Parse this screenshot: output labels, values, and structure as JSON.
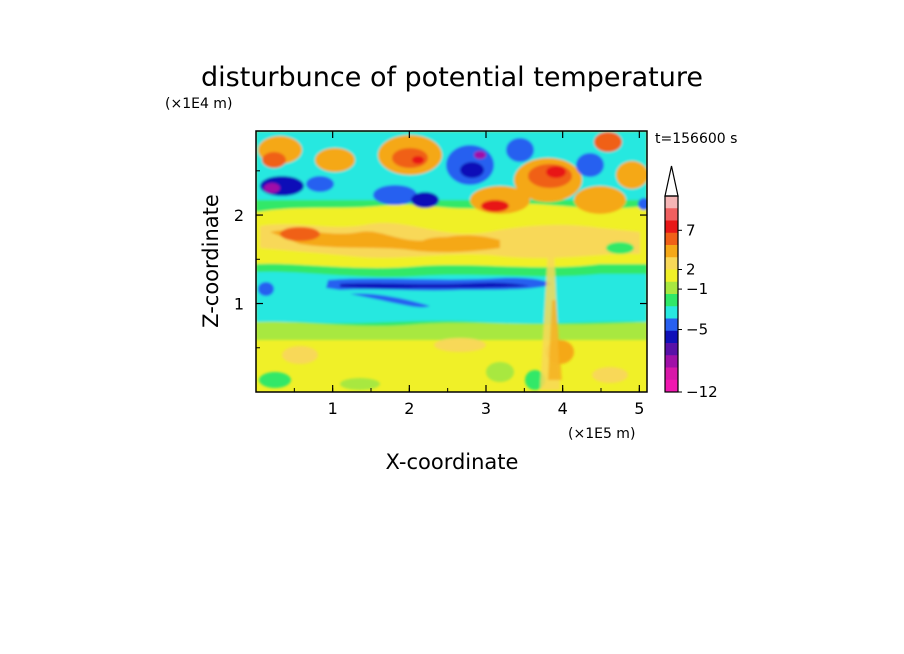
{
  "chart_data": {
    "type": "heatmap",
    "title": "disturbunce of potential temperature",
    "xlabel": "X-coordinate",
    "ylabel": "Z-coordinate",
    "x_unit": "(×1E5 m)",
    "y_unit": "(×1E4 m)",
    "time_label": "t=156600 s",
    "x_ticks": [
      "1",
      "2",
      "3",
      "4",
      "5"
    ],
    "y_ticks": [
      "1",
      "2"
    ],
    "xlim": [
      0,
      5.1
    ],
    "ylim": [
      0,
      2.95
    ],
    "colorbar_labels": [
      "7",
      "2",
      "−1",
      "−5",
      "−12"
    ],
    "colorbar_colors": [
      "#f5b5b5",
      "#f06060",
      "#e81818",
      "#f06018",
      "#f5a818",
      "#f8d858",
      "#f0f028",
      "#a8e840",
      "#30e868",
      "#28e8e0",
      "#2860f0",
      "#1010b8",
      "#5810a8",
      "#a010a8",
      "#d818a8",
      "#f018b0"
    ],
    "series_summary": [
      {
        "z_range": [
          0,
          0.8
        ],
        "character": "mostly yellow/orange with green patches (+1 to +3)"
      },
      {
        "z_range": [
          0.8,
          1.5
        ],
        "character": "cyan band (-1 to -3) with thin dark blue layer near z=1.2"
      },
      {
        "z_range": [
          1.5,
          2.2
        ],
        "character": "yellow/orange warm band (+2 to +5)"
      },
      {
        "z_range": [
          2.2,
          2.95
        ],
        "character": "mixed red/orange warm cells and blue/purple cold cells"
      }
    ]
  }
}
